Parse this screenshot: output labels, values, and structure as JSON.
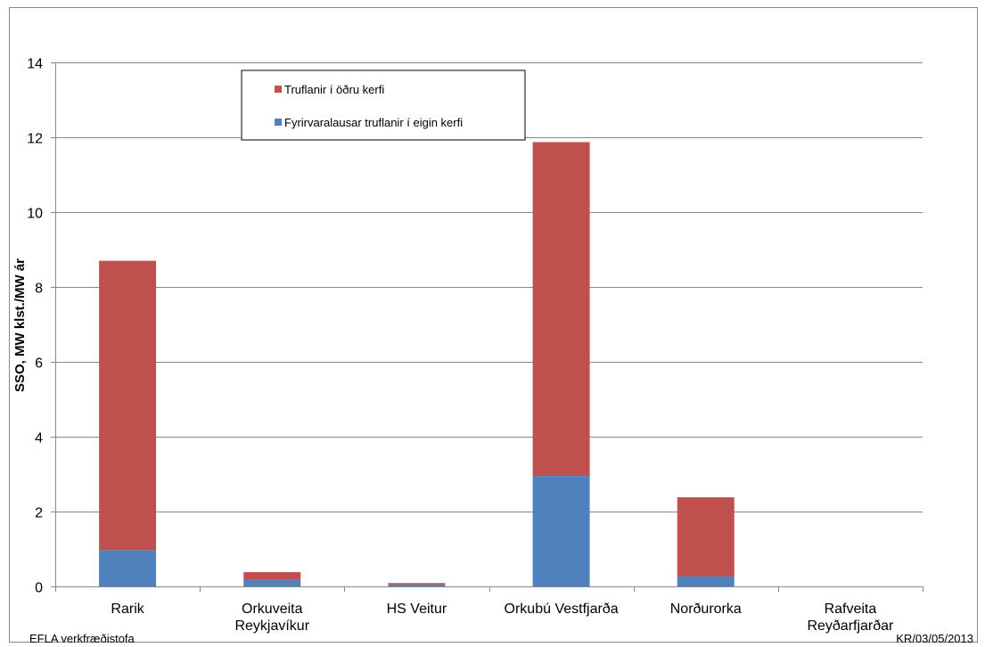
{
  "chart_data": {
    "type": "bar",
    "stacked": true,
    "title": "",
    "xlabel": "",
    "ylabel": "SSO, MW klst./MW ár",
    "ylim": [
      0,
      14
    ],
    "yticks": [
      0,
      2,
      4,
      6,
      8,
      10,
      12,
      14
    ],
    "grid": true,
    "legend_position": "top-left",
    "categories": [
      [
        "Rarik"
      ],
      [
        "Orkuveita",
        "Reykjavíkur"
      ],
      [
        "HS Veitur"
      ],
      [
        "Orkubú Vestfjarða"
      ],
      [
        "Norðurorka"
      ],
      [
        "Rafveita",
        "Reyðarfjarðar"
      ]
    ],
    "series": [
      {
        "name": "Fyrirvaralausar truflanir í eigin kerfi",
        "color": "#4f81bd",
        "values": [
          0.97,
          0.17,
          0.05,
          2.95,
          0.27,
          0.0
        ]
      },
      {
        "name": "Truflanir í öðru kerfi",
        "color": "#c0504d",
        "values": [
          7.73,
          0.21,
          0.04,
          8.92,
          2.11,
          0.0
        ]
      }
    ]
  },
  "footer": {
    "left": "EFLA verkfræðistofa",
    "right": "KR/03/05/2013"
  }
}
